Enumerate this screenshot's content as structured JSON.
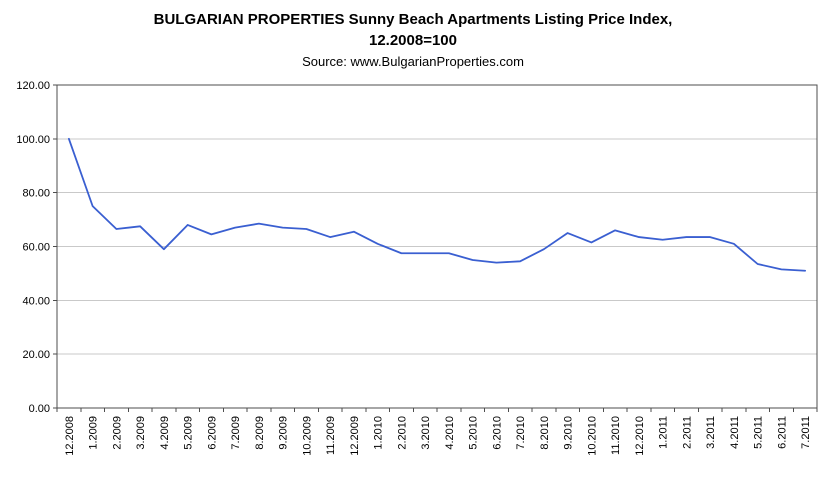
{
  "header": {
    "title_line1": "BULGARIAN PROPERTIES Sunny Beach Apartments Listing Price Index,",
    "title_line2": "12.2008=100",
    "source": "Source: www.BulgarianProperties.com"
  },
  "chart_data": {
    "type": "line",
    "title": "BULGARIAN PROPERTIES Sunny Beach Apartments Listing Price Index, 12.2008=100",
    "subtitle": "Source: www.BulgarianProperties.com",
    "xlabel": "",
    "ylabel": "",
    "ylim": [
      0,
      120
    ],
    "ytick_step": 20,
    "ytick_decimals": 2,
    "grid": true,
    "legend": "none",
    "line_color": "#3a5fd1",
    "axis_color": "#4d4d4d",
    "grid_color": "#c9c9c9",
    "text_color": "#000000",
    "categories": [
      "12.2008",
      "1.2009",
      "2.2009",
      "3.2009",
      "4.2009",
      "5.2009",
      "6.2009",
      "7.2009",
      "8.2009",
      "9.2009",
      "10.2009",
      "11.2009",
      "12.2009",
      "1.2010",
      "2.2010",
      "3.2010",
      "4.2010",
      "5.2010",
      "6.2010",
      "7.2010",
      "8.2010",
      "9.2010",
      "10.2010",
      "11.2010",
      "12.2010",
      "1.2011",
      "2.2011",
      "3.2011",
      "4.2011",
      "5.2011",
      "6.2011",
      "7.2011"
    ],
    "values": [
      100,
      75,
      66.5,
      67.5,
      59,
      68,
      64.5,
      67,
      68.5,
      67,
      66.5,
      63.5,
      65.5,
      61,
      57.5,
      57.5,
      57.5,
      55,
      54,
      54.5,
      59,
      65,
      61.5,
      66,
      63.5,
      62.5,
      63.5,
      63.5,
      61,
      53.5,
      51.5,
      51
    ]
  }
}
